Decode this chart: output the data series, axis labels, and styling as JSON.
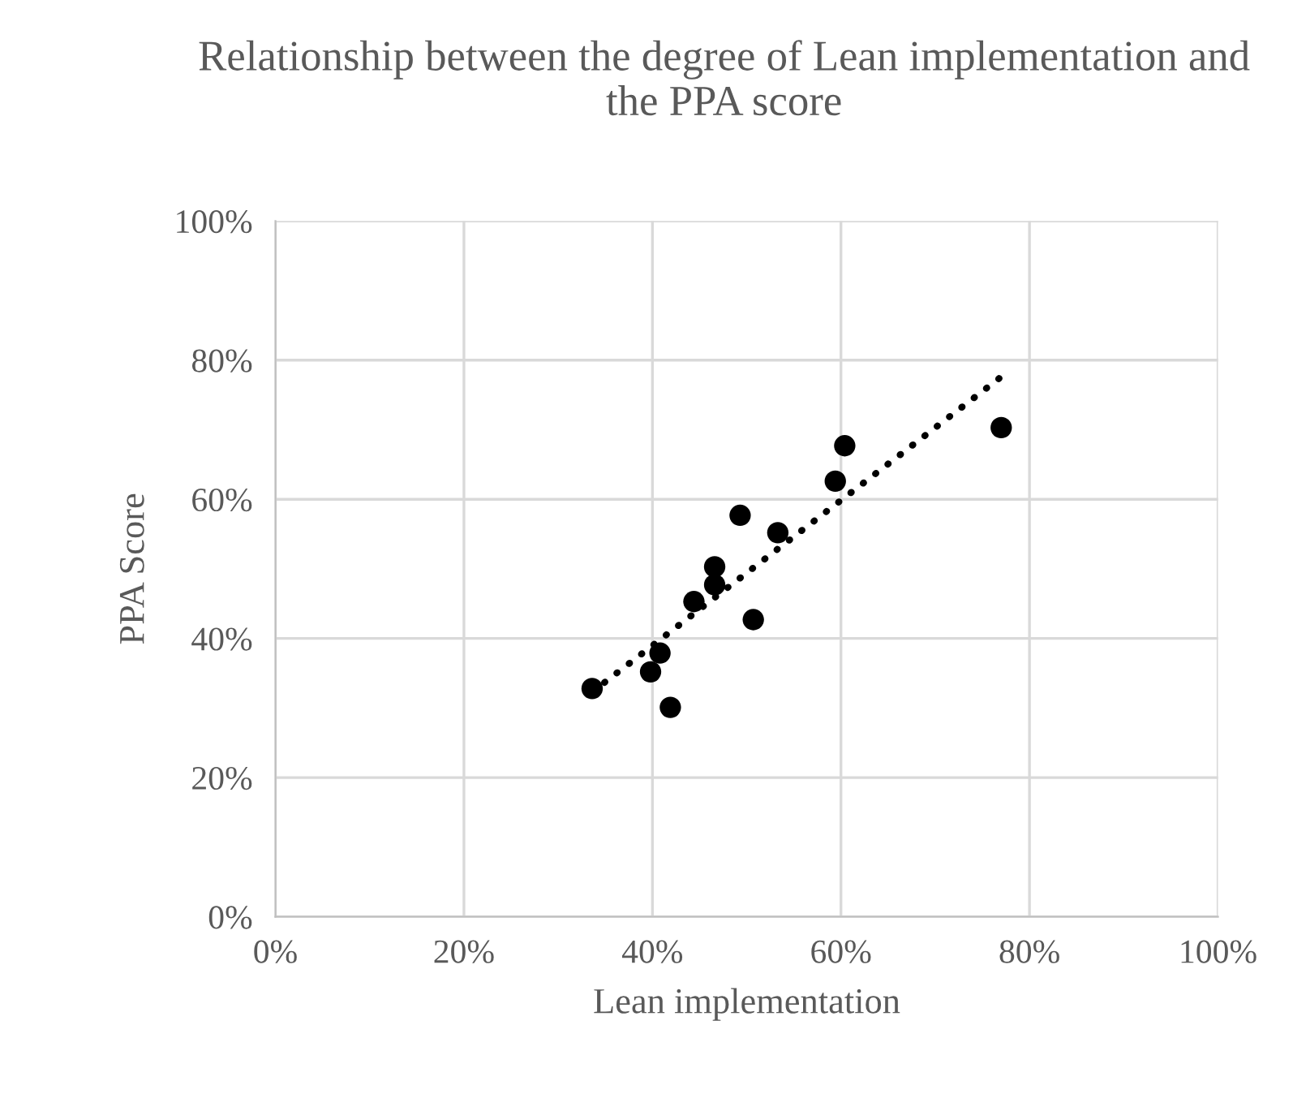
{
  "chart_data": {
    "type": "scatter",
    "title": "Relationship between the degree of Lean implementation and the PPA score",
    "xlabel": "Lean implementation",
    "ylabel": "PPA Score",
    "series": [
      {
        "color": "#000000",
        "marker": "circle",
        "x": [
          33.6,
          39.8,
          40.8,
          41.9,
          44.4,
          46.6,
          46.6,
          49.3,
          50.7,
          53.3,
          59.4,
          60.4,
          77.0
        ],
        "values": [
          32.8,
          35.2,
          37.9,
          30.1,
          45.3,
          47.7,
          50.3,
          57.7,
          42.7,
          55.2,
          62.6,
          67.7,
          70.3
        ]
      },
      {
        "type": "line",
        "color": "#000000",
        "line_style": "dotted",
        "x": [
          33.6,
          77.0
        ],
        "values": [
          32.3,
          77.6
        ]
      }
    ],
    "xlim": [
      0,
      100
    ],
    "ylim": [
      0,
      100
    ],
    "xticks": [
      {
        "value": 0,
        "label": "0%"
      },
      {
        "value": 20,
        "label": "20%"
      },
      {
        "value": 40,
        "label": "40%"
      },
      {
        "value": 60,
        "label": "60%"
      },
      {
        "value": 80,
        "label": "80%"
      },
      {
        "value": 100,
        "label": "100%"
      }
    ],
    "yticks": [
      {
        "value": 0,
        "label": "0%"
      },
      {
        "value": 20,
        "label": "20%"
      },
      {
        "value": 40,
        "label": "40%"
      },
      {
        "value": 60,
        "label": "60%"
      },
      {
        "value": 80,
        "label": "80%"
      },
      {
        "value": 100,
        "label": "100%"
      }
    ],
    "grid": true,
    "legend": false
  }
}
